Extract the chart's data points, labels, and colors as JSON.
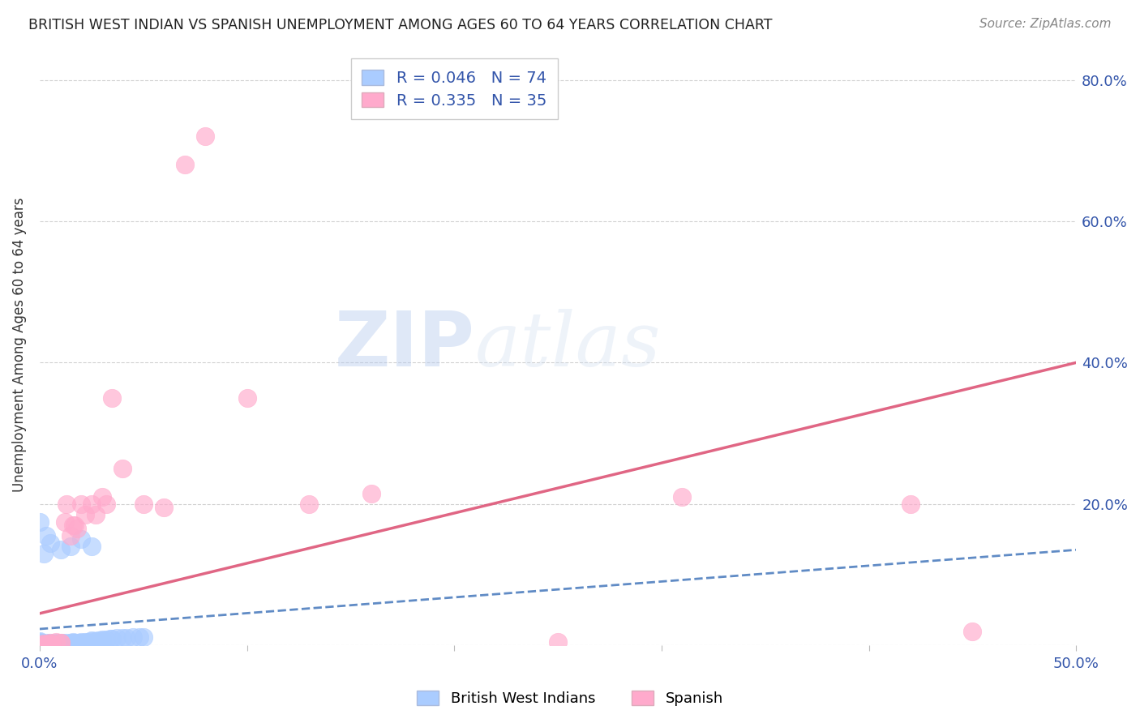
{
  "title": "BRITISH WEST INDIAN VS SPANISH UNEMPLOYMENT AMONG AGES 60 TO 64 YEARS CORRELATION CHART",
  "source": "Source: ZipAtlas.com",
  "ylabel": "Unemployment Among Ages 60 to 64 years",
  "xlim": [
    0.0,
    0.5
  ],
  "ylim": [
    0.0,
    0.85
  ],
  "blue_R": "0.046",
  "blue_N": "74",
  "pink_R": "0.335",
  "pink_N": "35",
  "blue_color": "#aaccff",
  "pink_color": "#ffaacc",
  "blue_line_color": "#4477bb",
  "pink_line_color": "#dd5577",
  "legend_label_blue": "British West Indians",
  "legend_label_pink": "Spanish",
  "blue_x": [
    0.0,
    0.0,
    0.0,
    0.0,
    0.0,
    0.0,
    0.0,
    0.0,
    0.0,
    0.0,
    0.002,
    0.002,
    0.003,
    0.003,
    0.004,
    0.004,
    0.005,
    0.005,
    0.005,
    0.005,
    0.006,
    0.006,
    0.007,
    0.007,
    0.007,
    0.008,
    0.008,
    0.008,
    0.009,
    0.009,
    0.01,
    0.01,
    0.01,
    0.011,
    0.011,
    0.012,
    0.012,
    0.013,
    0.013,
    0.014,
    0.015,
    0.015,
    0.016,
    0.016,
    0.017,
    0.018,
    0.019,
    0.02,
    0.02,
    0.022,
    0.023,
    0.025,
    0.025,
    0.027,
    0.028,
    0.03,
    0.03,
    0.032,
    0.034,
    0.035,
    0.037,
    0.04,
    0.042,
    0.045,
    0.048,
    0.05,
    0.0,
    0.002,
    0.003,
    0.005,
    0.01,
    0.015,
    0.02,
    0.025
  ],
  "blue_y": [
    0.0,
    0.001,
    0.001,
    0.002,
    0.002,
    0.003,
    0.003,
    0.004,
    0.005,
    0.006,
    0.0,
    0.001,
    0.002,
    0.003,
    0.001,
    0.002,
    0.0,
    0.001,
    0.002,
    0.003,
    0.001,
    0.002,
    0.0,
    0.001,
    0.002,
    0.001,
    0.002,
    0.003,
    0.001,
    0.002,
    0.0,
    0.001,
    0.002,
    0.001,
    0.003,
    0.001,
    0.002,
    0.002,
    0.003,
    0.002,
    0.002,
    0.004,
    0.003,
    0.005,
    0.003,
    0.004,
    0.004,
    0.003,
    0.005,
    0.005,
    0.005,
    0.006,
    0.007,
    0.006,
    0.007,
    0.007,
    0.008,
    0.008,
    0.009,
    0.009,
    0.01,
    0.01,
    0.01,
    0.011,
    0.012,
    0.012,
    0.175,
    0.13,
    0.155,
    0.145,
    0.135,
    0.14,
    0.15,
    0.14
  ],
  "pink_x": [
    0.0,
    0.001,
    0.002,
    0.003,
    0.004,
    0.005,
    0.006,
    0.008,
    0.01,
    0.01,
    0.012,
    0.013,
    0.015,
    0.016,
    0.017,
    0.018,
    0.02,
    0.022,
    0.025,
    0.027,
    0.03,
    0.032,
    0.035,
    0.04,
    0.05,
    0.06,
    0.07,
    0.08,
    0.1,
    0.13,
    0.16,
    0.25,
    0.31,
    0.42,
    0.45
  ],
  "pink_y": [
    0.0,
    0.001,
    0.002,
    0.001,
    0.002,
    0.003,
    0.002,
    0.005,
    0.003,
    0.004,
    0.175,
    0.2,
    0.155,
    0.17,
    0.17,
    0.165,
    0.2,
    0.185,
    0.2,
    0.185,
    0.21,
    0.2,
    0.35,
    0.25,
    0.2,
    0.195,
    0.68,
    0.72,
    0.35,
    0.2,
    0.215,
    0.005,
    0.21,
    0.2,
    0.02
  ],
  "blue_trend_x": [
    0.0,
    0.5
  ],
  "blue_trend_y": [
    0.023,
    0.135
  ],
  "pink_trend_x": [
    0.0,
    0.5
  ],
  "pink_trend_y": [
    0.045,
    0.4
  ]
}
